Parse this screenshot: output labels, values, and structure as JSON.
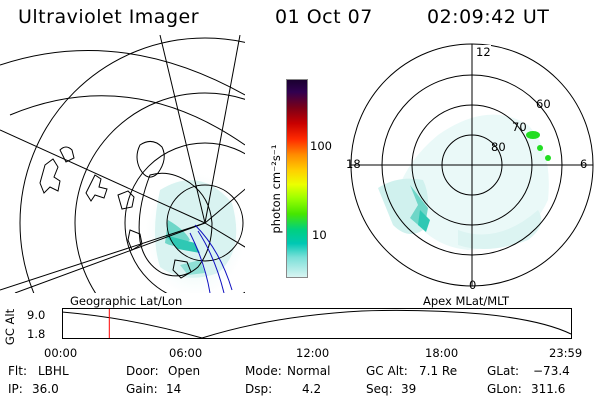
{
  "header": {
    "instrument": "Ultraviolet Imager",
    "date": "01 Oct 07",
    "time": "02:09:42 UT"
  },
  "colorbar": {
    "label": "photon cm⁻²s⁻¹",
    "ticks": [
      "100",
      "10"
    ],
    "scale": "log"
  },
  "polar": {
    "hour_labels": {
      "top": "12",
      "left": "18",
      "right": "6",
      "bottom": "0"
    },
    "lat_labels": [
      "60",
      "70",
      "80"
    ]
  },
  "map_labels": {
    "left": "Geographic Lat/Lon",
    "right": "Apex MLat/MLT"
  },
  "altitude_plot": {
    "axis_label": "GC Alt",
    "y_ticks": [
      "9.0",
      "1.8"
    ],
    "x_ticks": [
      "00:00",
      "06:00",
      "12:00",
      "18:00",
      "23:59"
    ],
    "current_time_fraction": 0.093
  },
  "info": {
    "flt_label": "Flt:",
    "flt_value": "LBHL",
    "ip_label": "IP:",
    "ip_value": "36.0",
    "door_label": "Door:",
    "door_value": "Open",
    "gain_label": "Gain:",
    "gain_value": "14",
    "mode_label": "Mode:",
    "mode_value": "Normal",
    "dsp_label": "Dsp:",
    "dsp_value": "4.2",
    "gcalt_label": "GC Alt:",
    "gcalt_value": "7.1 Re",
    "seq_label": "Seq:",
    "seq_value": "39",
    "glat_label": "GLat:",
    "glat_value": "−73.4",
    "glon_label": "GLon:",
    "glon_value": "311.6"
  },
  "colors": {
    "aurora": "#9fe0dc",
    "aurora_bright": "#2fc8b4",
    "green": "#22dd22",
    "marker": "#ff0000",
    "track": "#1010c0"
  }
}
